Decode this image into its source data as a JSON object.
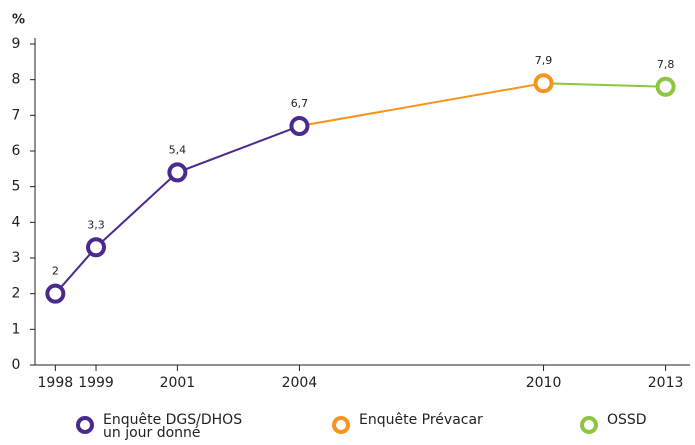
{
  "chart_data": {
    "type": "line",
    "y_label": "%",
    "x": [
      1998,
      1999,
      2001,
      2004,
      2010,
      2013
    ],
    "xlim": [
      1997.5,
      2013.6
    ],
    "xticks": [
      1998,
      1999,
      2001,
      2004,
      2010,
      2013
    ],
    "ylim": [
      0,
      9
    ],
    "yticks": [
      0,
      1,
      2,
      3,
      4,
      5,
      6,
      7,
      8,
      9
    ],
    "series": [
      {
        "name": "Enquête DGS/DHOS un jour donné",
        "color": "#4b2a8f",
        "values": [
          2,
          3.3,
          5.4,
          6.7,
          null,
          null
        ],
        "value_labels": [
          "2",
          "3,3",
          "5,4",
          "6,7",
          null,
          null
        ]
      },
      {
        "name": "Enquête Prévacar",
        "color": "#f7941d",
        "values": [
          null,
          null,
          null,
          null,
          7.9,
          null
        ],
        "value_labels": [
          null,
          null,
          null,
          null,
          "7,9",
          null
        ]
      },
      {
        "name": "OSSD",
        "color": "#8dc63f",
        "values": [
          null,
          null,
          null,
          null,
          null,
          7.8
        ],
        "value_labels": [
          null,
          null,
          null,
          null,
          null,
          "7,8"
        ]
      }
    ]
  }
}
